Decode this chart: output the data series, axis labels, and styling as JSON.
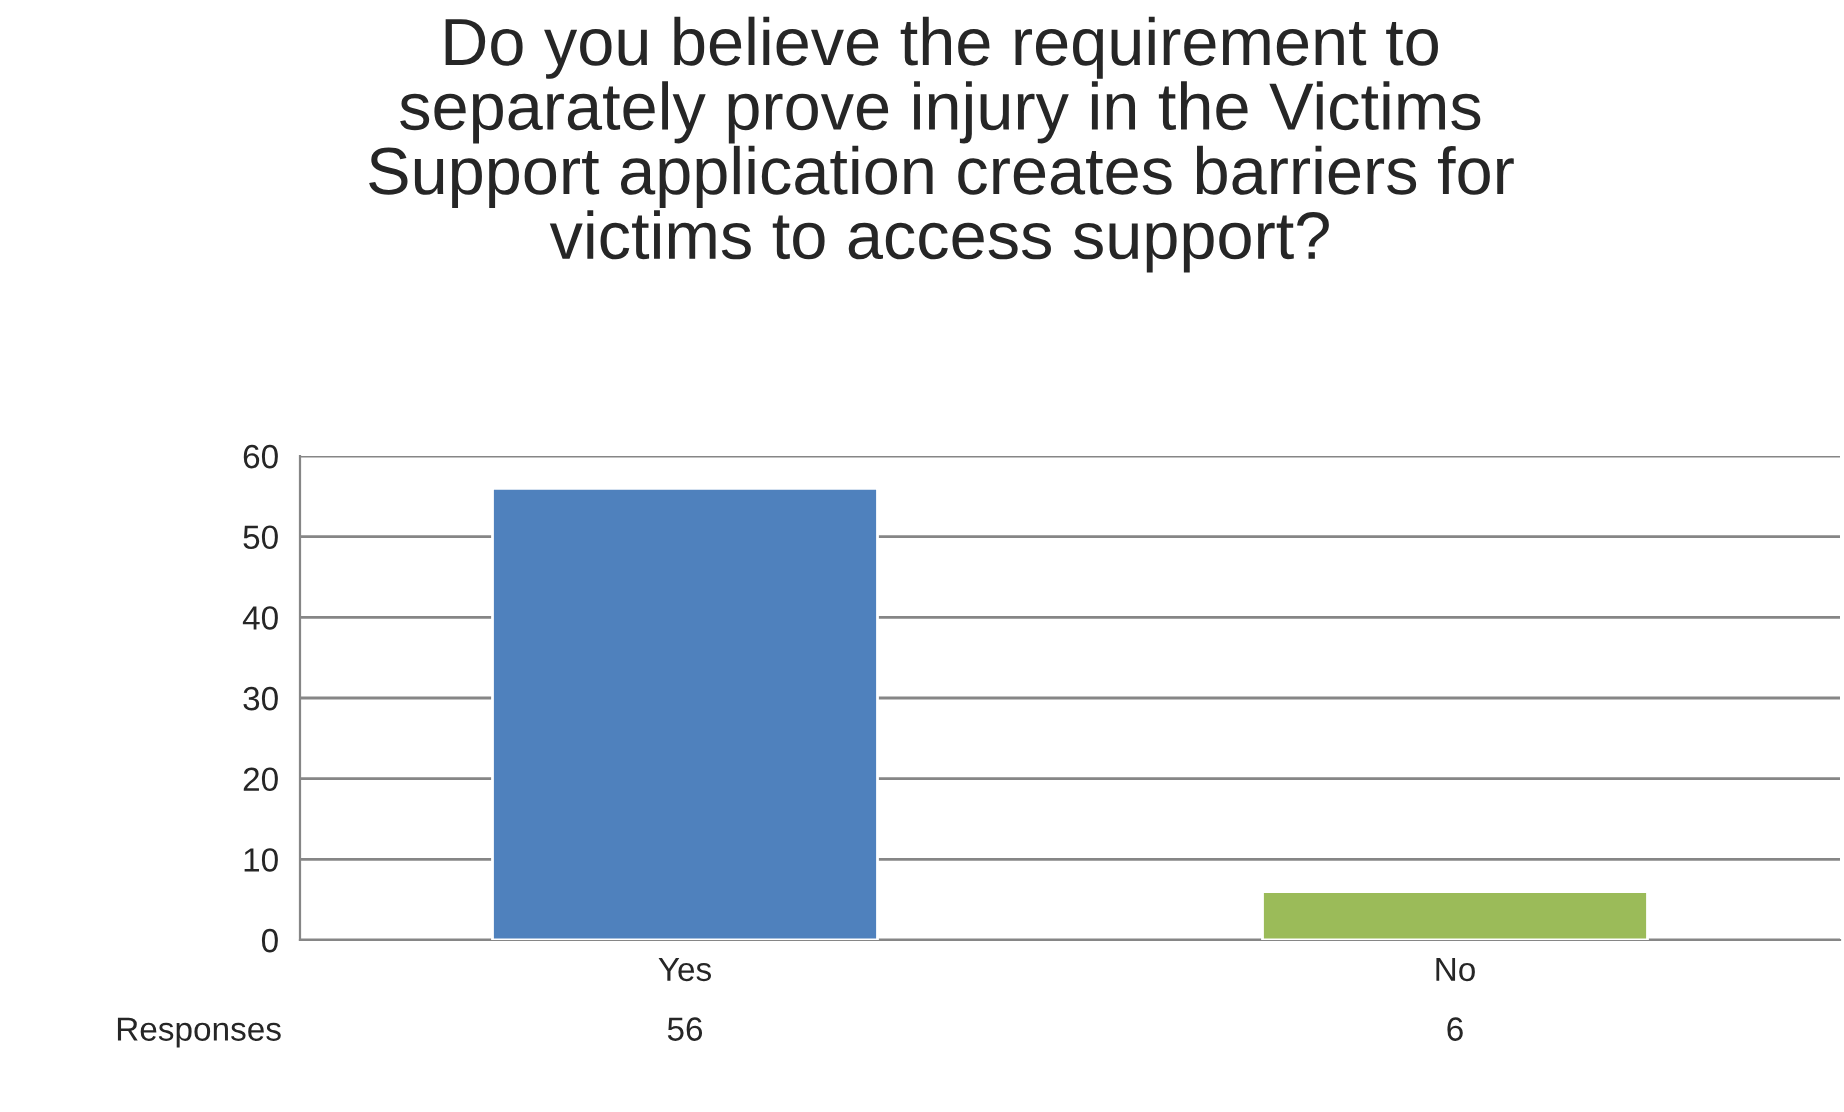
{
  "chart_data": {
    "type": "bar",
    "title": "Do you believe the requirement to\nseparately prove injury in the Victims\nSupport application creates barriers for\nvictims to access support?",
    "categories": [
      "Yes",
      "No"
    ],
    "series": [
      {
        "name": "Responses",
        "colors": [
          "#4f81bd",
          "#9bbb59"
        ],
        "values": [
          56,
          6
        ]
      }
    ],
    "ylim": [
      0,
      60
    ],
    "yticks": [
      0,
      10,
      20,
      30,
      40,
      50,
      60
    ],
    "grid": "y",
    "data_labels": true
  }
}
